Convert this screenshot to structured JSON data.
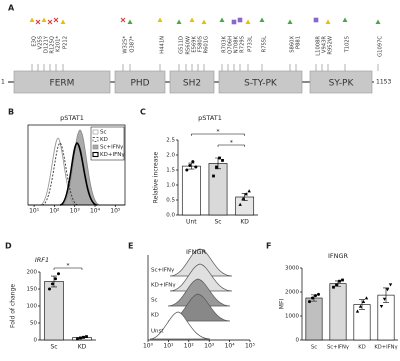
{
  "panel_labels": [
    "A",
    "B",
    "C",
    "D",
    "E",
    "F"
  ],
  "protein_map": {
    "start": "1",
    "end": "1153",
    "domains": [
      "FERM",
      "PHD",
      "SH2",
      "S-TY-PK",
      "SY-PK"
    ],
    "mutations": [
      "E3Q",
      "V25S",
      "D121Y",
      "R125Q",
      "K201*",
      "P212",
      "W325*",
      "Q387*",
      "H441N",
      "G511D",
      "R560W",
      "E569K",
      "F580S",
      "R601G",
      "R703K",
      "Q706H",
      "N708K",
      "R729S",
      "P733L",
      "R755L",
      "S860X",
      "P881",
      "L1008R",
      "V943R",
      "R952W",
      "T1025",
      "G1097C"
    ]
  },
  "chart_data": [
    {
      "type": "histogram",
      "title": "pSTAT1",
      "log_scale": true,
      "xlim": [
        5,
        300000
      ],
      "xticks": [
        {
          "value": 10,
          "label": "10¹"
        },
        {
          "value": 100,
          "label": "10²"
        },
        {
          "value": 1000,
          "label": "10³"
        },
        {
          "value": 10000,
          "label": "10⁴"
        },
        {
          "value": 100000,
          "label": "10⁵"
        }
      ],
      "legend": [
        "Sc",
        "KD",
        "Sc+IFNγ",
        "KD+IFNγ"
      ]
    },
    {
      "type": "bar",
      "title": "pSTAT1",
      "ylabel": "Relative increase",
      "categories": [
        "Unt",
        "Sc",
        "KD"
      ],
      "values": [
        1.63,
        1.72,
        0.6
      ],
      "errors": [
        0.1,
        0.18,
        0.12
      ],
      "points": [
        [
          1.5,
          1.65,
          1.78,
          1.6
        ],
        [
          1.3,
          1.6,
          1.9,
          1.82
        ],
        [
          0.35,
          0.55,
          0.7,
          0.8
        ]
      ],
      "colors": [
        "#ffffff",
        "#d9d9d9",
        "#e6e6e6"
      ],
      "ylim": [
        0,
        2.5
      ],
      "yticks": [
        {
          "value": 0,
          "label": "0.0"
        },
        {
          "value": 0.5,
          "label": "0.5"
        },
        {
          "value": 1,
          "label": "1.0"
        },
        {
          "value": 1.5,
          "label": "1.5"
        },
        {
          "value": 2,
          "label": "2.0"
        },
        {
          "value": 2.5,
          "label": "2.5"
        }
      ],
      "annotations": [
        "*",
        "*"
      ]
    },
    {
      "type": "bar",
      "title": "IRF1",
      "ylabel": "Fold of change",
      "categories": [
        "Sc",
        "KD"
      ],
      "values": [
        172,
        7
      ],
      "errors": [
        16,
        2
      ],
      "points": [
        [
          150,
          165,
          180,
          195
        ],
        [
          4,
          6,
          8,
          10
        ]
      ],
      "colors": [
        "#d9d9d9",
        "#ffffff"
      ],
      "ylim": [
        0,
        200
      ],
      "yticks": [
        0,
        50,
        100,
        150,
        200
      ],
      "annotations": [
        "*"
      ]
    },
    {
      "type": "histogram-offset",
      "title": "IFNGR",
      "log_scale": true,
      "xlim": [
        1,
        100000
      ],
      "xticks": [
        {
          "value": 1,
          "label": "10⁰"
        },
        {
          "value": 10,
          "label": "10¹"
        },
        {
          "value": 100,
          "label": "10²"
        },
        {
          "value": 1000,
          "label": "10³"
        },
        {
          "value": 10000,
          "label": "10⁴"
        },
        {
          "value": 100000,
          "label": "10⁵"
        }
      ],
      "labels": [
        "Sc+IFNγ",
        "KD+IFNγ",
        "Sc",
        "KD",
        "Unst"
      ]
    },
    {
      "type": "bar",
      "title": "IFNGR",
      "ylabel": "MFI",
      "categories": [
        "Sc",
        "Sc+IFNγ",
        "KD",
        "KD+IFNγ"
      ],
      "values": [
        1750,
        2350,
        1480,
        1870
      ],
      "errors": [
        130,
        110,
        200,
        300
      ],
      "points": [
        [
          1600,
          1750,
          1850,
          1900
        ],
        [
          2200,
          2300,
          2450,
          2500
        ],
        [
          1200,
          1400,
          1600,
          1750
        ],
        [
          1400,
          1700,
          2100,
          2300
        ]
      ],
      "colors": [
        "#bfbfbf",
        "#d9d9d9",
        "#ffffff",
        "#ffffff"
      ],
      "ylim": [
        0,
        3000
      ],
      "yticks": [
        0,
        1000,
        2000,
        3000
      ]
    }
  ]
}
